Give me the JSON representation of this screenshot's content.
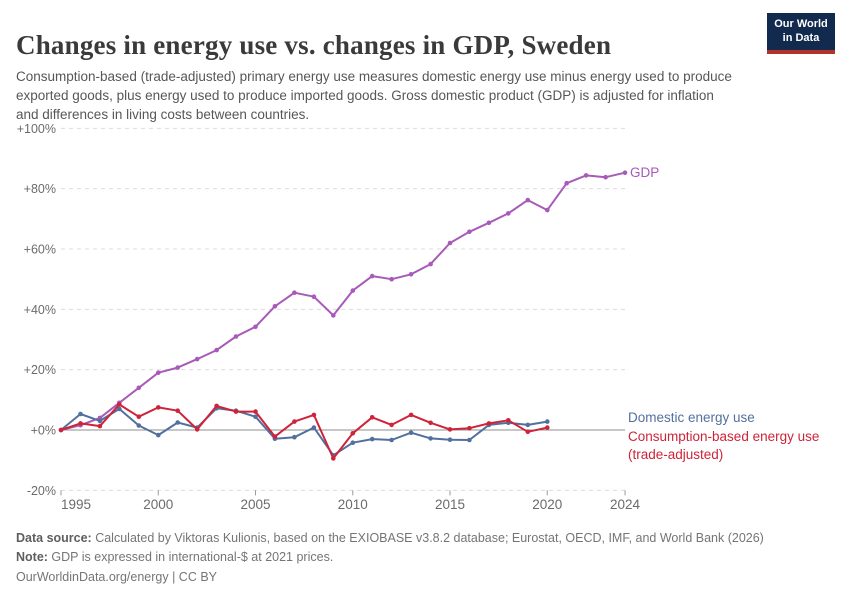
{
  "header": {
    "title": "Changes in energy use vs. changes in GDP, Sweden",
    "subtitle": "Consumption-based (trade-adjusted) primary energy use measures domestic energy use minus energy used to produce exported goods, plus energy used to produce imported goods. Gross domestic product (GDP) is adjusted for inflation and differences in living costs between countries.",
    "logo_line1": "Our World",
    "logo_line2": "in Data",
    "logo_bg": "#122A4E",
    "logo_bar": "#B0342C"
  },
  "legend": {
    "gdp": "GDP",
    "domestic": "Domestic energy use",
    "consumption_line1": "Consumption-based energy use",
    "consumption_line2": "(trade-adjusted)"
  },
  "chart_data": {
    "type": "line",
    "title": "Changes in energy use vs. changes in GDP, Sweden",
    "ylabel": "",
    "xlabel": "",
    "ylim": [
      -20,
      100
    ],
    "xlim": [
      1995,
      2024.6
    ],
    "grid": "horizontal-dashed",
    "legend_position": "right-of-line-ends",
    "yticks": [
      {
        "v": 100,
        "label": "+100%"
      },
      {
        "v": 80,
        "label": "+80%"
      },
      {
        "v": 60,
        "label": "+60%"
      },
      {
        "v": 40,
        "label": "+40%"
      },
      {
        "v": 20,
        "label": "+20%"
      },
      {
        "v": 0,
        "label": "+0%"
      },
      {
        "v": -20,
        "label": "-20%"
      }
    ],
    "xticks": [
      1995,
      2000,
      2005,
      2010,
      2015,
      2020,
      2024
    ],
    "series": [
      {
        "name": "GDP",
        "color": "#A85AB8",
        "x": [
          1995,
          1996,
          1997,
          1998,
          1999,
          2000,
          2001,
          2002,
          2003,
          2004,
          2005,
          2006,
          2007,
          2008,
          2009,
          2010,
          2011,
          2012,
          2013,
          2014,
          2015,
          2016,
          2017,
          2018,
          2019,
          2020,
          2021,
          2022,
          2023,
          2024
        ],
        "values": [
          0,
          1.6,
          4.0,
          9.0,
          14.0,
          19.0,
          20.7,
          23.5,
          26.5,
          31.0,
          34.2,
          41.0,
          45.5,
          44.2,
          38.0,
          46.2,
          51.0,
          50.0,
          51.6,
          55.0,
          62.0,
          65.7,
          68.7,
          71.8,
          76.2,
          72.9,
          81.8,
          84.4,
          83.8,
          85.3
        ]
      },
      {
        "name": "Domestic energy use",
        "color": "#52709E",
        "x": [
          1995,
          1996,
          1997,
          1998,
          1999,
          2000,
          2001,
          2002,
          2003,
          2004,
          2005,
          2006,
          2007,
          2008,
          2009,
          2010,
          2011,
          2012,
          2013,
          2014,
          2015,
          2016,
          2017,
          2018,
          2019,
          2020
        ],
        "values": [
          0,
          5.3,
          3.0,
          7.0,
          1.5,
          -1.7,
          2.5,
          0.8,
          7.2,
          6.4,
          4.4,
          -2.9,
          -2.4,
          0.8,
          -8.4,
          -4.2,
          -3.0,
          -3.3,
          -0.9,
          -2.8,
          -3.2,
          -3.3,
          1.7,
          2.4,
          1.7,
          2.8
        ]
      },
      {
        "name": "Consumption-based energy use (trade-adjusted)",
        "color": "#CE2439",
        "x": [
          1995,
          1996,
          1997,
          1998,
          1999,
          2000,
          2001,
          2002,
          2003,
          2004,
          2005,
          2006,
          2007,
          2008,
          2009,
          2010,
          2011,
          2012,
          2013,
          2014,
          2015,
          2016,
          2017,
          2018,
          2019,
          2020
        ],
        "values": [
          0,
          2.2,
          1.3,
          8.5,
          4.4,
          7.5,
          6.4,
          0.2,
          8.0,
          6.1,
          6.1,
          -2.2,
          2.8,
          5.0,
          -9.4,
          -1.1,
          4.2,
          1.7,
          5.0,
          2.4,
          0.2,
          0.6,
          2.2,
          3.2,
          -0.6,
          0.8
        ]
      }
    ]
  },
  "footer": {
    "data_source_label": "Data source:",
    "data_source_text": " Calculated by Viktoras Kulionis, based on the EXIOBASE v3.8.2 database; Eurostat, OECD, IMF, and World Bank (2026)",
    "note_label": "Note:",
    "note_text": " GDP is expressed in international-$ at 2021 prices.",
    "link_text": "OurWorldinData.org/energy | CC BY"
  }
}
